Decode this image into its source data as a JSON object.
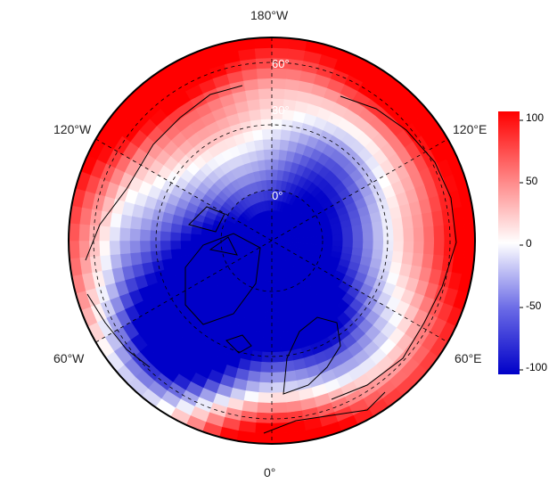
{
  "map": {
    "projection": "north-polar-stereographic",
    "lon_labels": {
      "top": "180°W",
      "upper_left": "120°W",
      "upper_right": "120°E",
      "lower_left": "60°W",
      "lower_right": "60°E",
      "bottom": "0°"
    },
    "lat_labels": [
      "60°",
      "30°",
      "0°"
    ],
    "graticule": "dashed",
    "coastlines": true
  },
  "colorbar": {
    "ticks": [
      "100",
      "50",
      "0",
      "-50",
      "-100"
    ],
    "min": -100,
    "max": 100,
    "colormap": [
      "#0000c8",
      "#ffffff",
      "#ff0000"
    ]
  }
}
